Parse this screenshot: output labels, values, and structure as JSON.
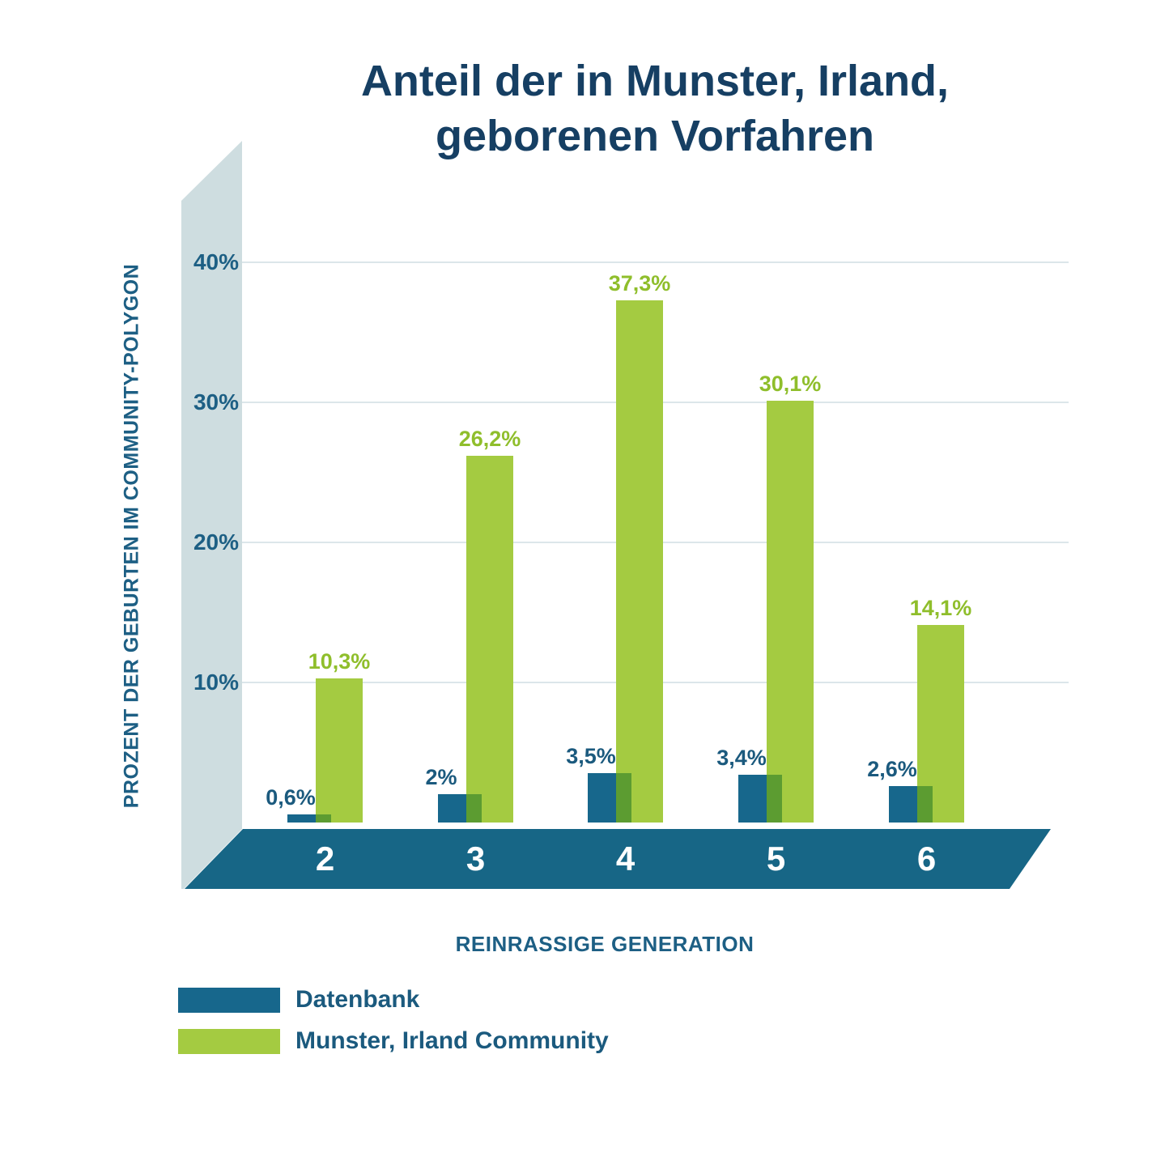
{
  "title": {
    "line1": "Anteil der in Munster, Irland,",
    "line2": "geborenen Vorfahren"
  },
  "y_axis": {
    "title": "PROZENT DER GEBURTEN IM COMMUNITY-POLYGON",
    "tick_suffix": "%"
  },
  "x_axis": {
    "title": "REINRASSIGE GENERATION"
  },
  "legend": [
    {
      "label": "Datenbank",
      "color": "#17678c"
    },
    {
      "label": "Munster, Irland Community",
      "color": "#a4cb41"
    }
  ],
  "colors": {
    "title_text": "#163f63",
    "axis_text": "#1d5f84",
    "blue_label_text": "#1b5a7e",
    "green_label_text": "#8fbe2b",
    "bar_blue": "#17678c",
    "bar_green": "#a4cb41",
    "bar_overlap_green": "#5c9c31",
    "wall": "#cedde0",
    "floor": "#176686",
    "gridline": "#dce6ea",
    "floor_text": "#ffffff"
  },
  "chart_data": {
    "type": "bar",
    "title": "Anteil der in Munster, Irland, geborenen Vorfahren",
    "xlabel": "REINRASSIGE GENERATION",
    "ylabel": "PROZENT DER GEBURTEN IM COMMUNITY-POLYGON",
    "categories": [
      "2",
      "3",
      "4",
      "5",
      "6"
    ],
    "series": [
      {
        "name": "Datenbank",
        "color": "#17678c",
        "values": [
          0.6,
          2,
          3.5,
          3.4,
          2.6
        ],
        "labels": [
          "0,6%",
          "2%",
          "3,5%",
          "3,4%",
          "2,6%"
        ]
      },
      {
        "name": "Munster, Irland Community",
        "color": "#a4cb41",
        "values": [
          10.3,
          26.2,
          37.3,
          30.1,
          14.1
        ],
        "labels": [
          "10,3%",
          "26,2%",
          "37,3%",
          "30,1%",
          "14,1%"
        ]
      }
    ],
    "yticks": [
      10,
      20,
      30,
      40
    ],
    "ytick_labels": [
      "10%",
      "20%",
      "30%",
      "40%"
    ],
    "ylim": [
      0,
      45
    ],
    "grid": true,
    "style": "pseudo-3d wall and floor",
    "legend_position": "bottom-left"
  }
}
